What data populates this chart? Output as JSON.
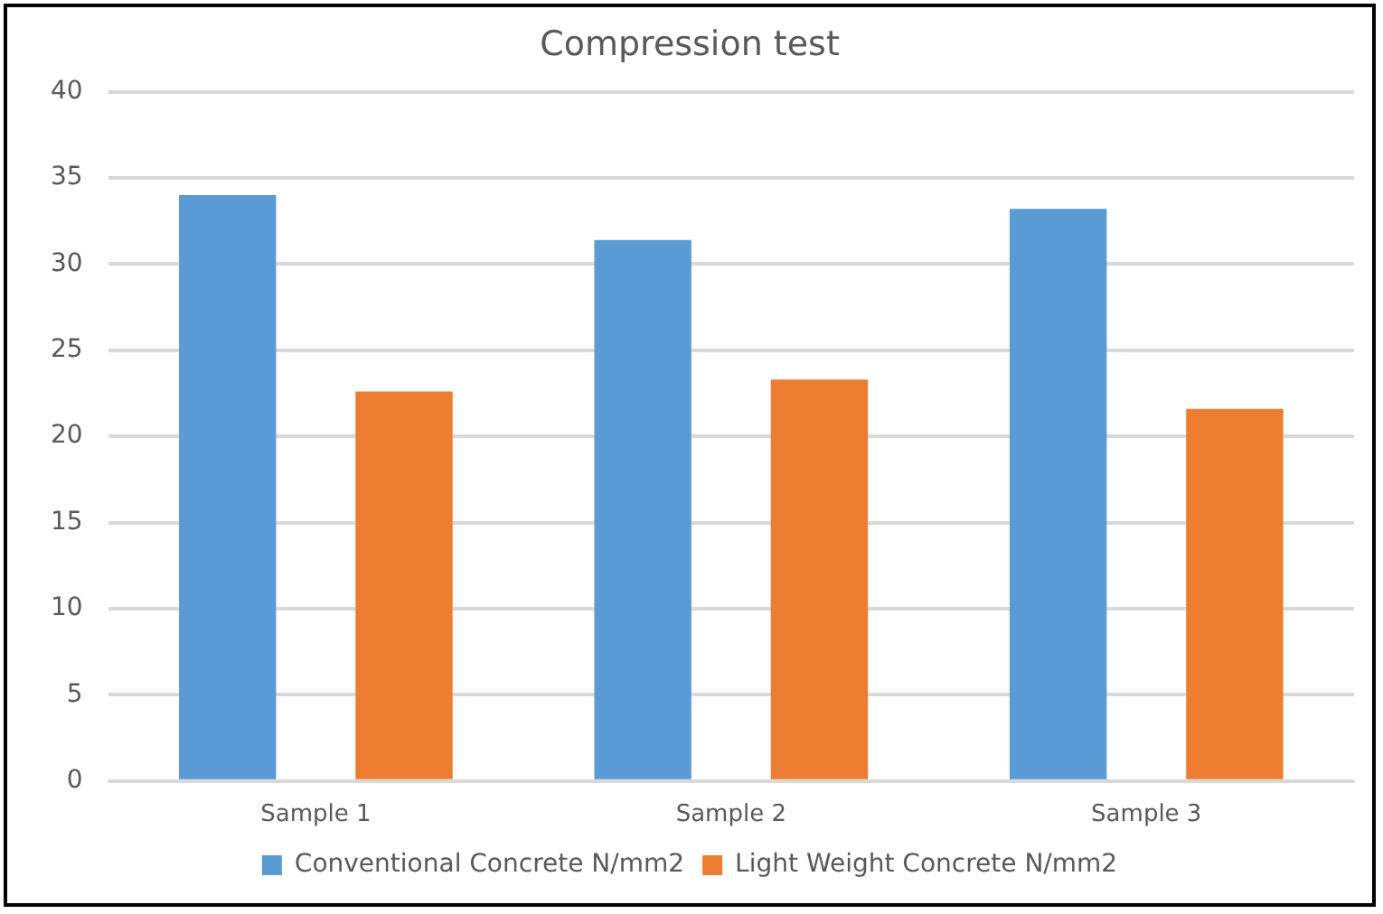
{
  "chart_data": {
    "type": "bar",
    "title": "Compression test",
    "categories": [
      "Sample 1",
      "Sample 2",
      "Sample 3"
    ],
    "series": [
      {
        "name": "Conventional Concrete N/mm2",
        "color": "#5b9bd5",
        "values": [
          34.0,
          31.4,
          33.2
        ]
      },
      {
        "name": "Light Weight Concrete N/mm2",
        "color": "#ed7d31",
        "values": [
          22.6,
          23.3,
          21.6
        ]
      }
    ],
    "ylim": [
      0,
      40
    ],
    "yticks": [
      0,
      5,
      10,
      15,
      20,
      25,
      30,
      35,
      40
    ],
    "grid": "y",
    "legend": "bottom"
  }
}
